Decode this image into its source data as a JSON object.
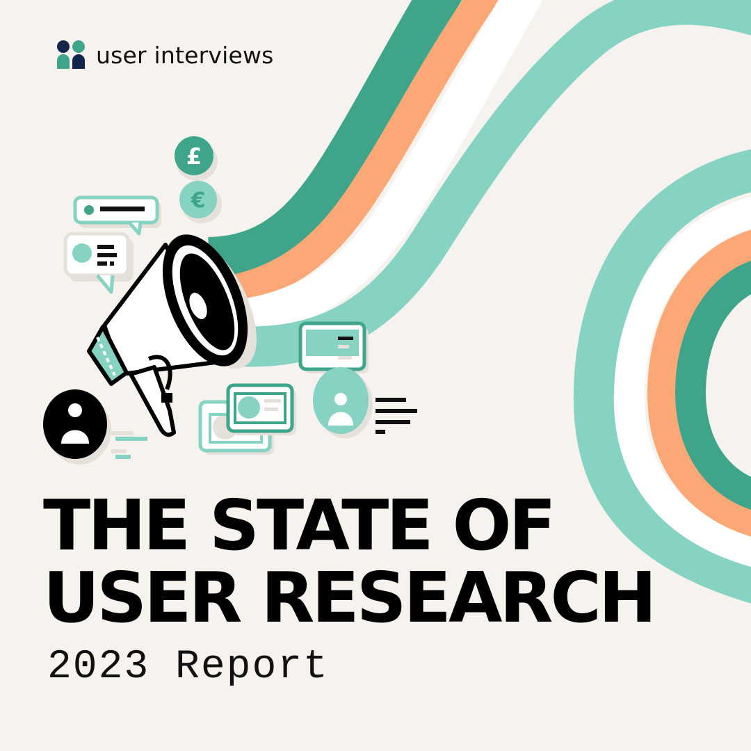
{
  "brand": {
    "name": "user interviews",
    "icon": "user-interviews-logo-icon"
  },
  "title": {
    "line1": "THE STATE OF",
    "line2": "USER RESEARCH"
  },
  "subtitle": "2023 Report",
  "colors": {
    "background": "#f6f3ef",
    "teal_dark": "#3fa58a",
    "teal_light": "#86d2c3",
    "orange": "#fba876",
    "white": "#ffffff",
    "ink": "#000000",
    "logo_navy": "#13254a"
  },
  "illustration": {
    "icons": [
      "megaphone-icon",
      "pound-coin-icon",
      "euro-coin-icon",
      "chat-bubble-icon",
      "user-avatar-icon",
      "browser-window-icon"
    ],
    "coin_pound": "£",
    "coin_euro": "€"
  }
}
